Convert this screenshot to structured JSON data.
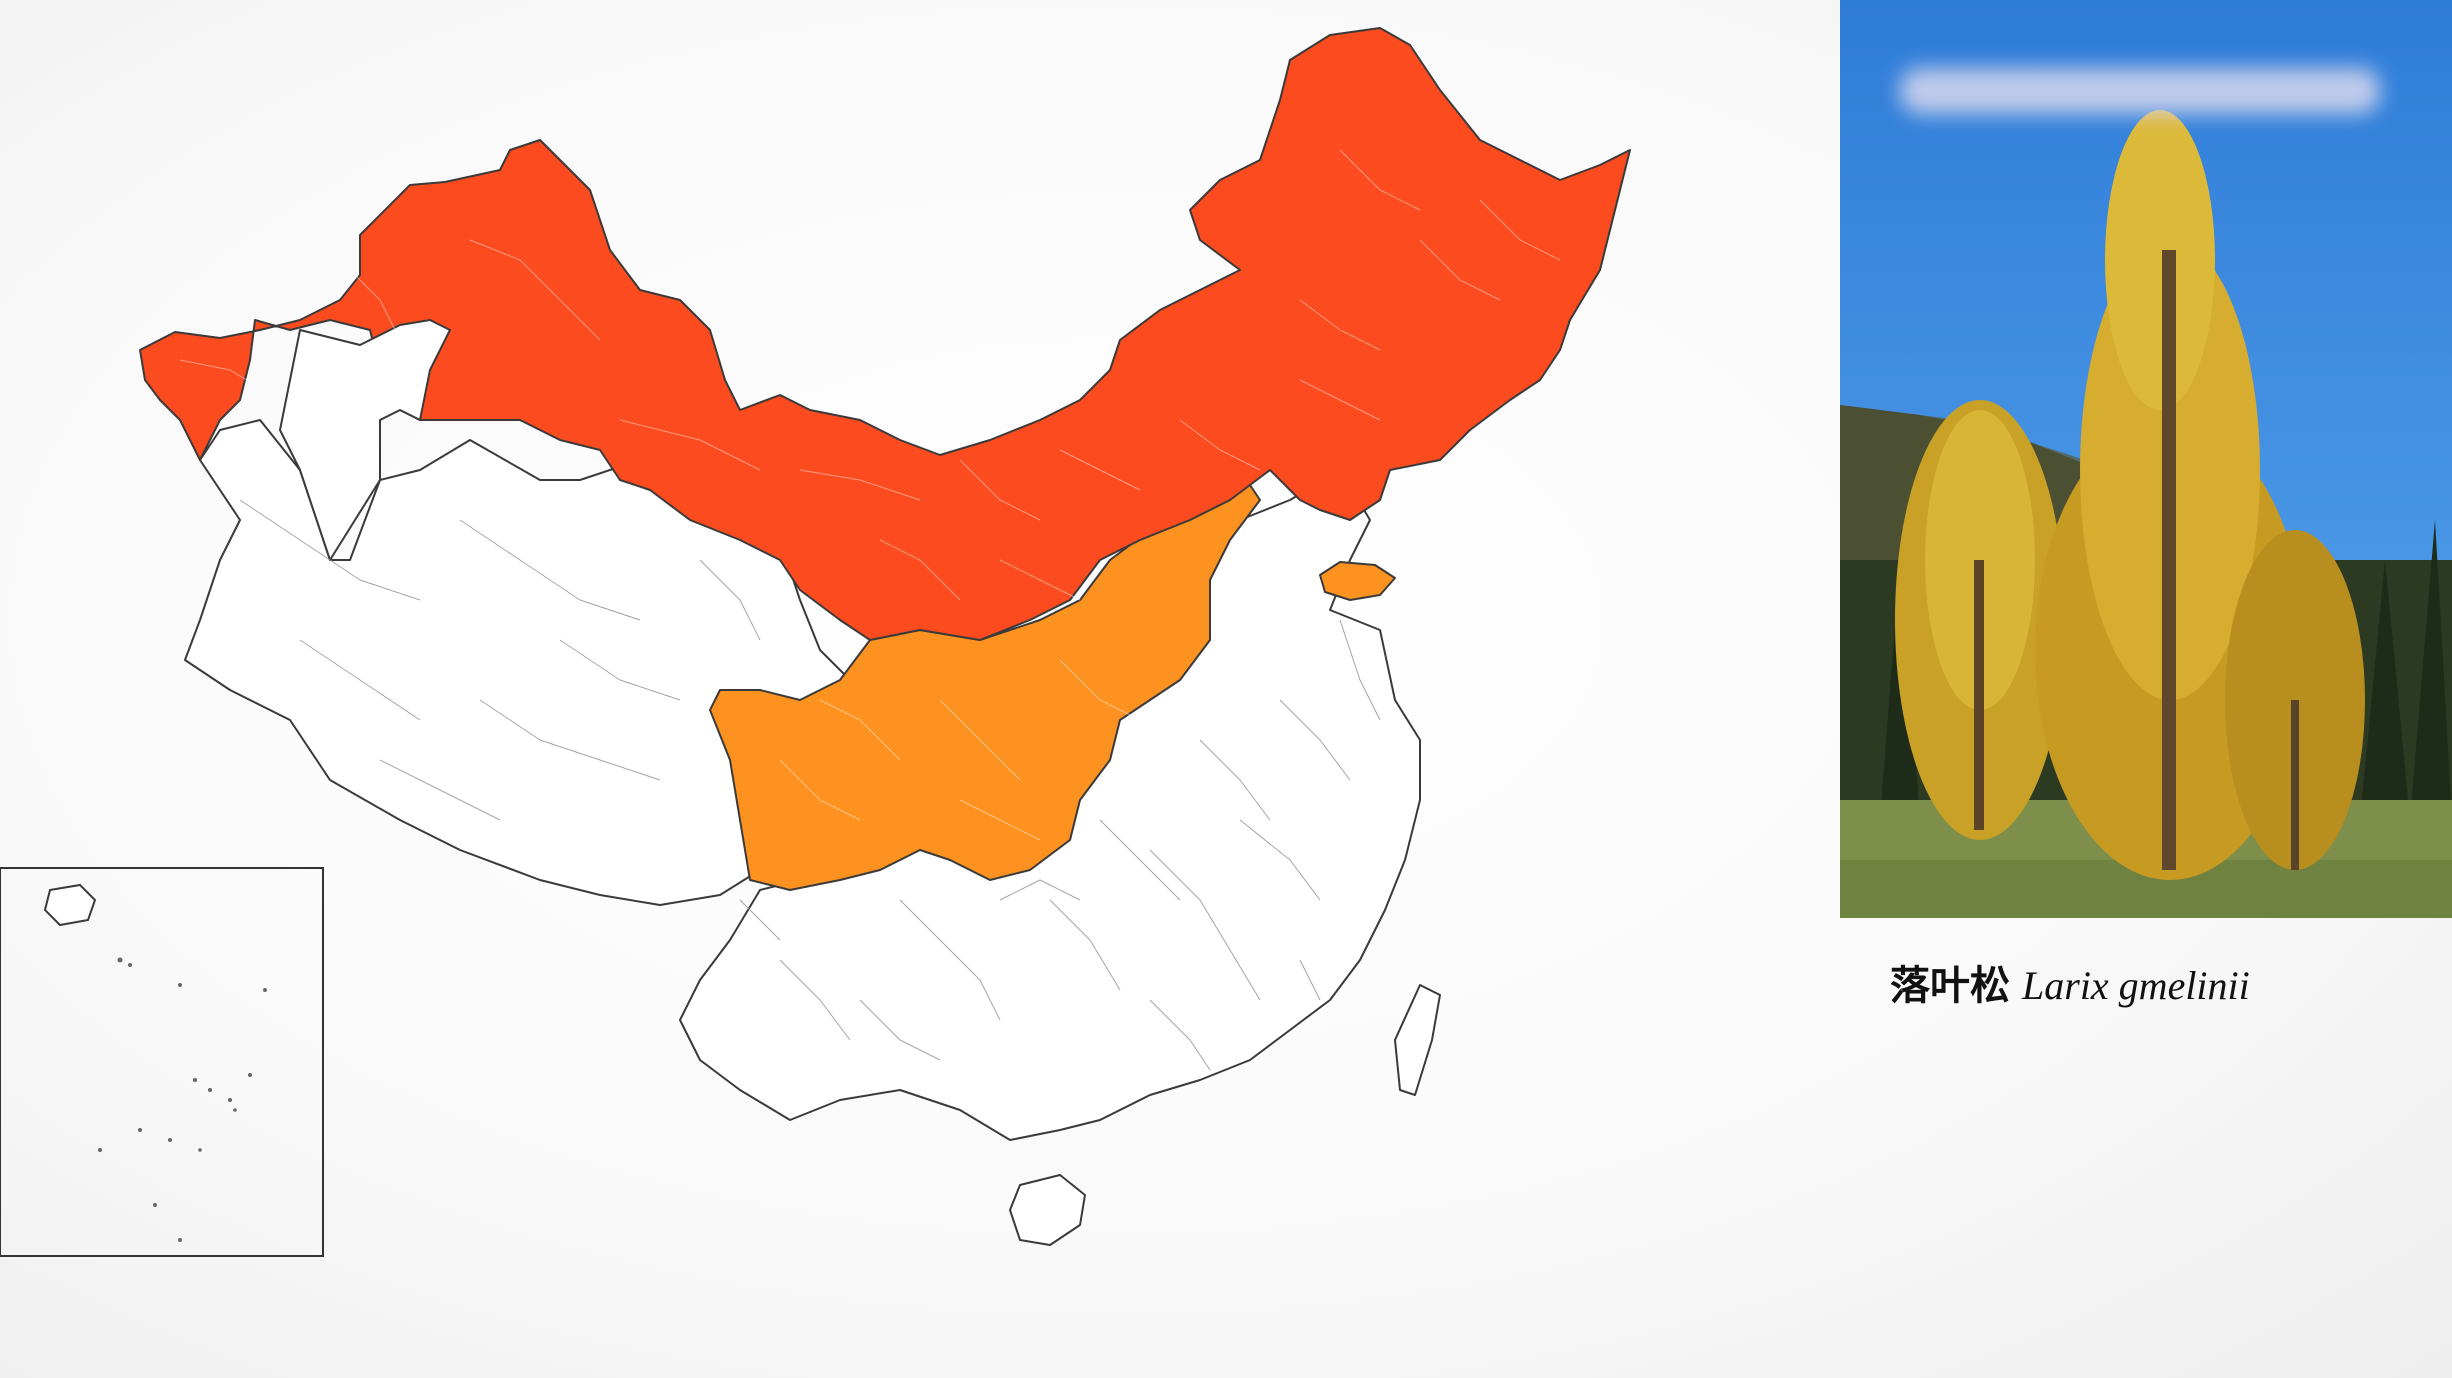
{
  "colors": {
    "core_range": "#fc4b1f",
    "secondary_range": "#fd9220",
    "unoccupied": "#ffffff",
    "border": "#3a3a3a"
  },
  "photo": {
    "subject": "larch-tree-photo"
  },
  "caption": {
    "chinese_name": "落叶松",
    "latin_name": "Larix gmelinii"
  }
}
